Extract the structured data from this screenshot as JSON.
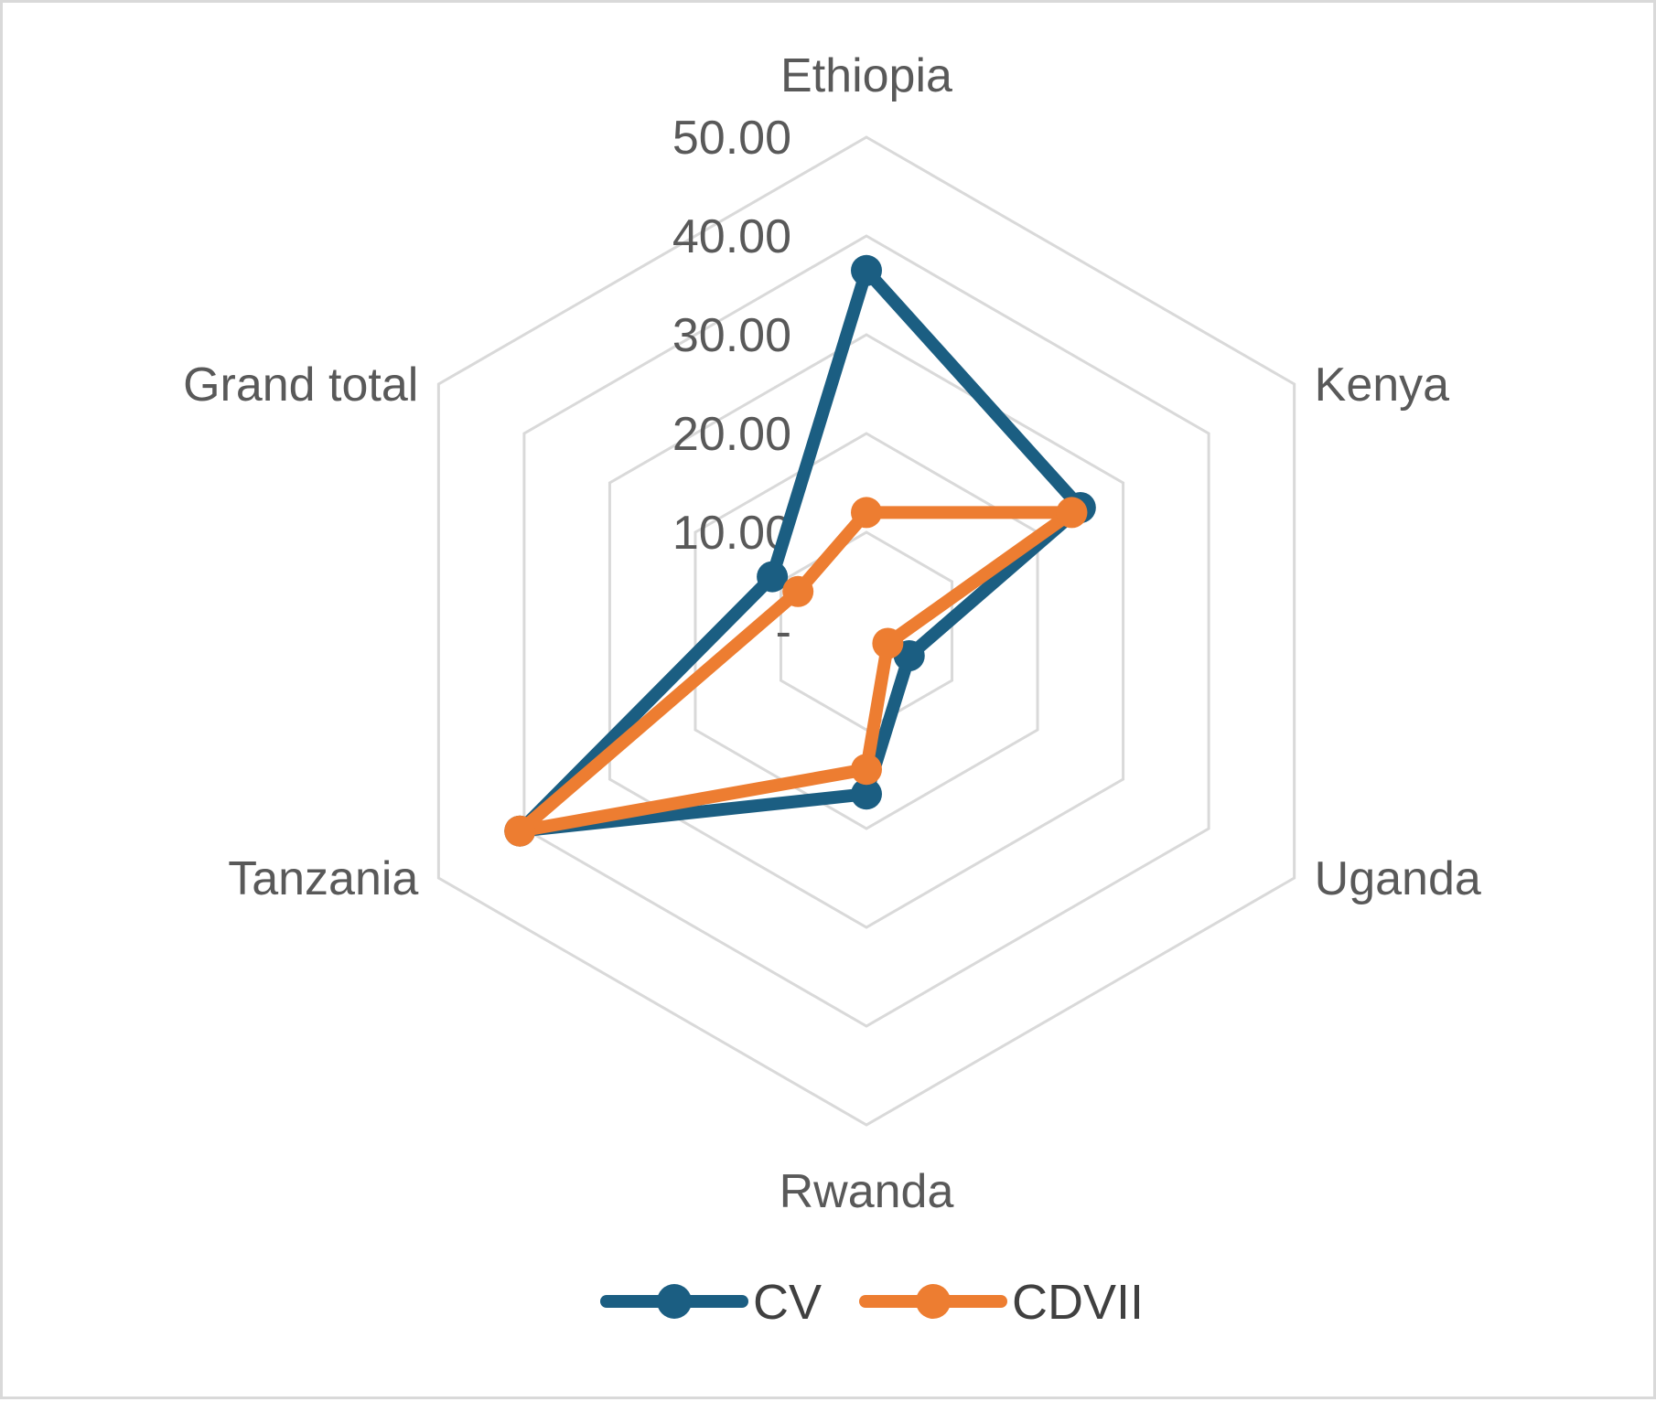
{
  "chart_data": {
    "type": "radar",
    "title": "",
    "categories": [
      "Ethiopia",
      "Kenya",
      "Uganda",
      "Rwanda",
      "Tanzania",
      "Grand total"
    ],
    "radial_ticks": [
      "-",
      "10.00",
      "20.00",
      "30.00",
      "40.00",
      "50.00"
    ],
    "rlim": [
      0,
      50
    ],
    "grid": true,
    "legend": "bottom",
    "series": [
      {
        "name": "CV",
        "color": "#1b5e82",
        "values": [
          36.5,
          25.0,
          5.0,
          16.5,
          40.5,
          11.0
        ]
      },
      {
        "name": "CDVII",
        "color": "#ed7d31",
        "values": [
          12.0,
          24.0,
          2.5,
          14.0,
          40.5,
          8.0
        ]
      }
    ]
  }
}
